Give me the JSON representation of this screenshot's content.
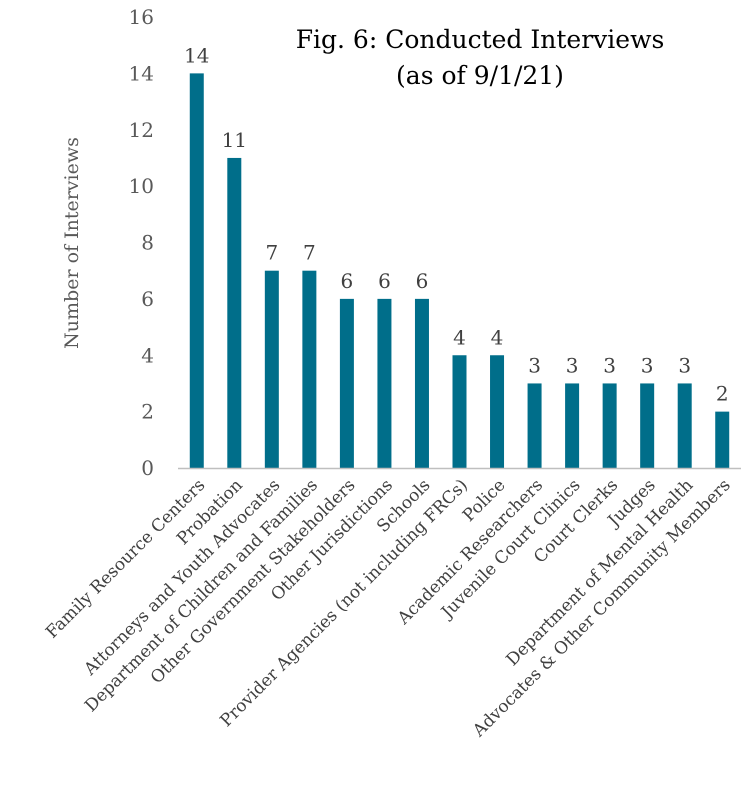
{
  "chart_data": {
    "type": "bar",
    "title": "Fig. 6: Conducted Interviews",
    "subtitle": "(as of 9/1/21)",
    "xlabel": "",
    "ylabel": "Number of Interviews",
    "ylim": [
      0,
      16
    ],
    "yticks": [
      0,
      2,
      4,
      6,
      8,
      10,
      12,
      14,
      16
    ],
    "grid": false,
    "legend": "none",
    "bar_color": "#006e8a",
    "categories": [
      "Family Resource Centers",
      "Probation",
      "Attorneys and Youth Advocates",
      "Department of Children and Families",
      "Other Government Stakeholders",
      "Other Jurisdictions",
      "Schools",
      "Provider Agencies (not including FRCs)",
      "Police",
      "Academic Researchers",
      "Juvenile Court Clinics",
      "Court Clerks",
      "Judges",
      "Department of Mental Health",
      "Advocates & Other Community Members"
    ],
    "values": [
      14,
      11,
      7,
      7,
      6,
      6,
      6,
      4,
      4,
      3,
      3,
      3,
      3,
      3,
      2
    ],
    "data_labels": [
      "14",
      "11",
      "7",
      "7",
      "6",
      "6",
      "6",
      "4",
      "4",
      "3",
      "3",
      "3",
      "3",
      "3",
      "2"
    ]
  }
}
